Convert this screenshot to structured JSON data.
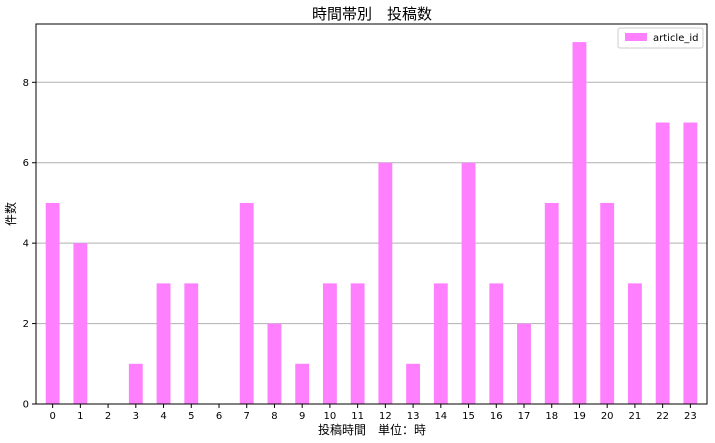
{
  "chart_data": {
    "type": "bar",
    "title": "時間帯別　投稿数",
    "xlabel": "投稿時間　単位：時",
    "ylabel": "件数",
    "categories": [
      "0",
      "1",
      "2",
      "3",
      "4",
      "5",
      "6",
      "7",
      "8",
      "9",
      "10",
      "11",
      "12",
      "13",
      "14",
      "15",
      "16",
      "17",
      "18",
      "19",
      "20",
      "21",
      "22",
      "23"
    ],
    "series": [
      {
        "name": "article_id",
        "values": [
          5,
          4,
          0,
          1,
          3,
          3,
          0,
          5,
          2,
          1,
          3,
          3,
          6,
          1,
          3,
          6,
          3,
          2,
          5,
          9,
          5,
          3,
          7,
          7
        ]
      }
    ],
    "ylim": [
      0,
      9.45
    ],
    "yticks": [
      "0",
      "2",
      "4",
      "6",
      "8"
    ],
    "grid": "horizontal",
    "legend_position": "top-right",
    "bar_color": "#ff80ff"
  }
}
